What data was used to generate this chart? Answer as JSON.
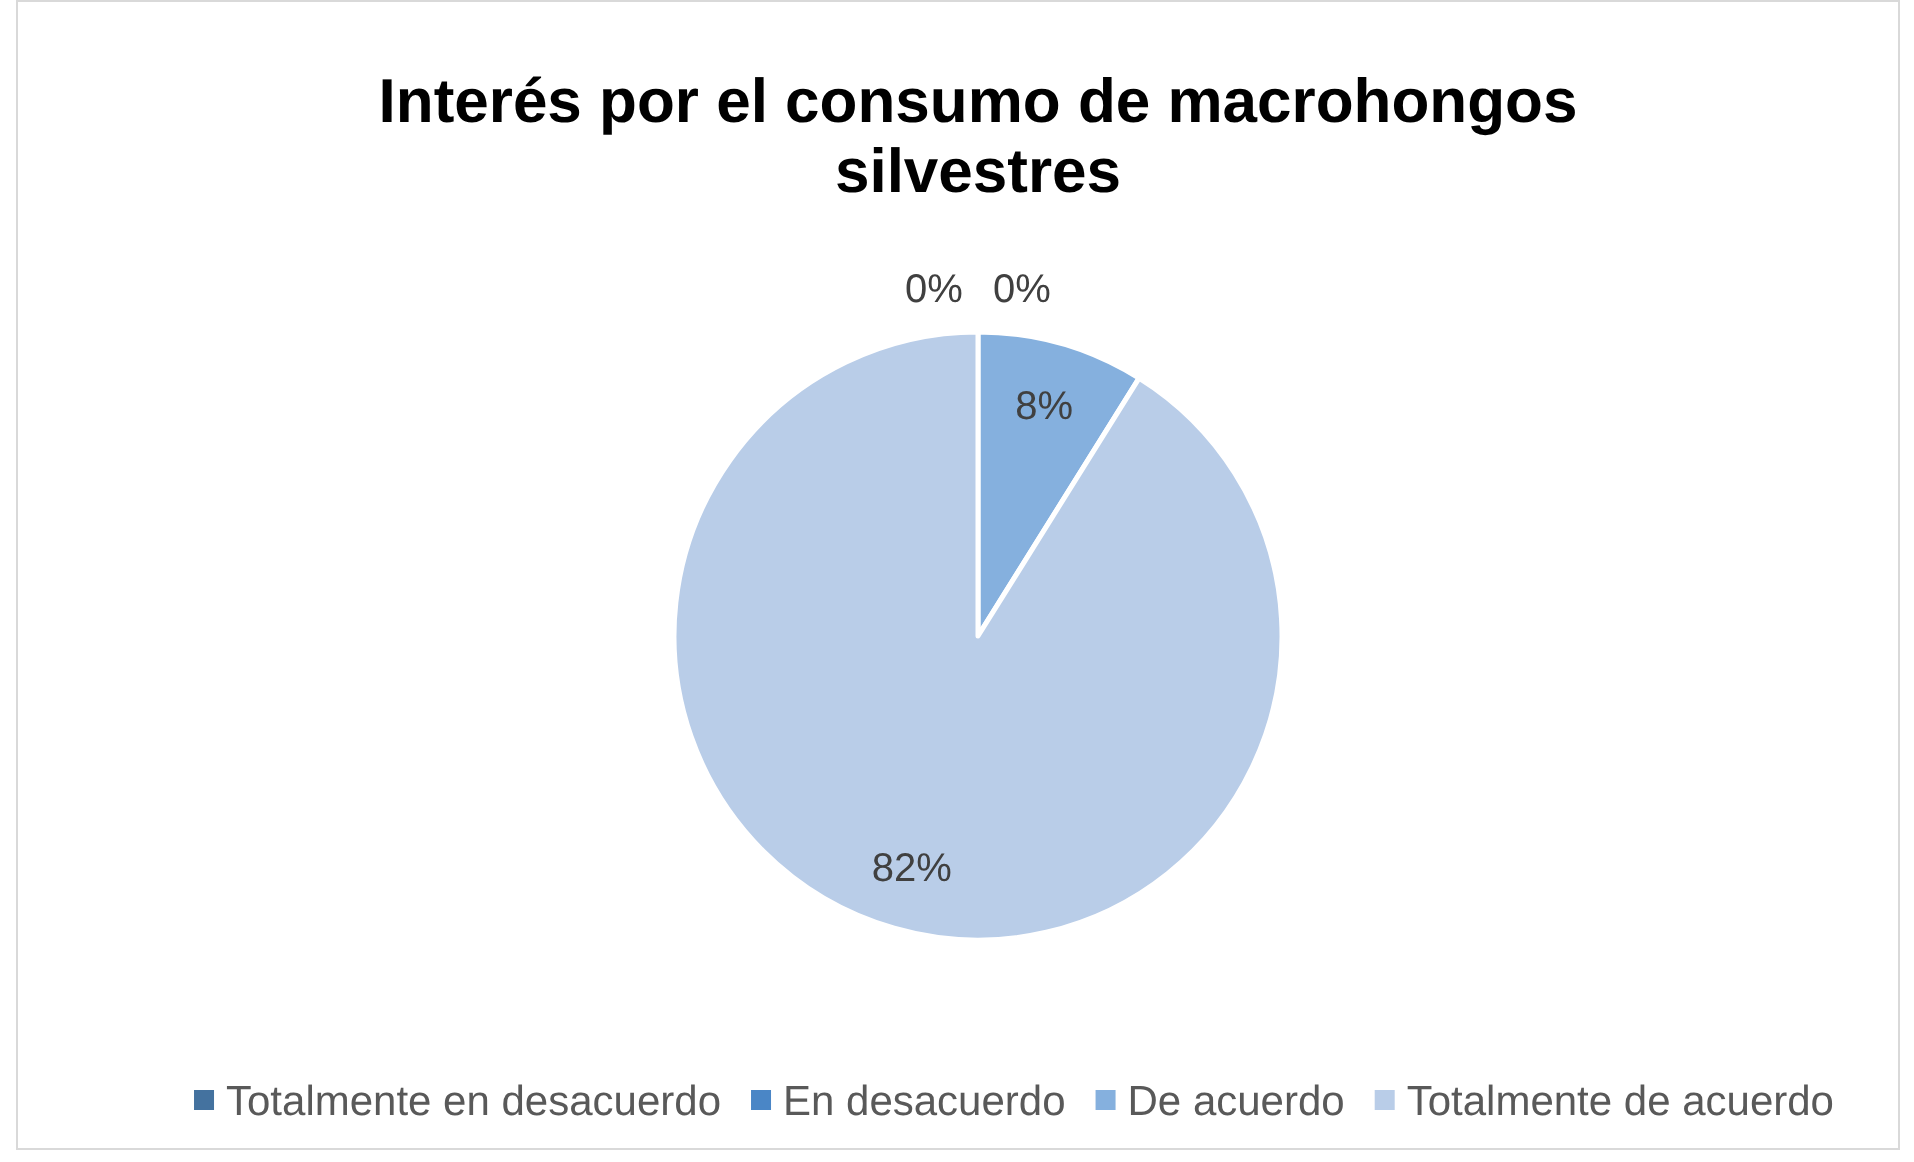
{
  "chart_data": {
    "type": "pie",
    "title": "Interés por el consumo de macrohongos silvestres",
    "categories": [
      "Totalmente en desacuerdo",
      "En desacuerdo",
      "De acuerdo",
      "Totalmente de acuerdo"
    ],
    "values": [
      0,
      0,
      8,
      82
    ],
    "colors": [
      "#44729f",
      "#4a86c6",
      "#85b0de",
      "#b9cde8"
    ],
    "value_labels": [
      "0%",
      "0%",
      "8%",
      "82%"
    ],
    "legend": "bottom"
  }
}
